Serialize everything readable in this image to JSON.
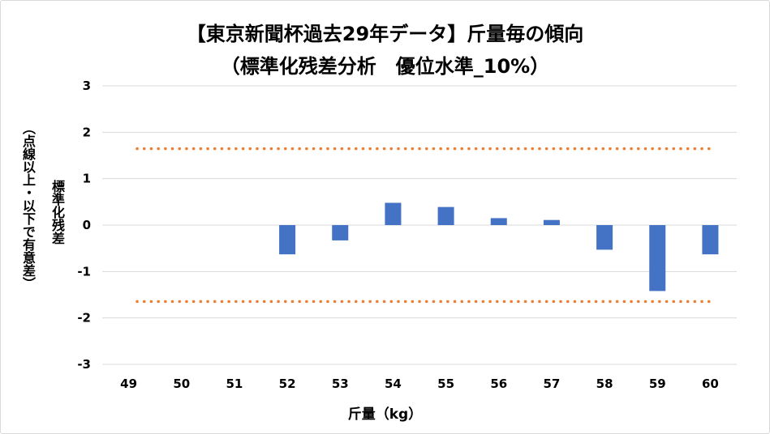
{
  "chart_data": {
    "type": "bar",
    "title": "【東京新聞杯過去29年データ】斤量毎の傾向",
    "subtitle": "（標準化残差分析　優位水準_10%）",
    "xlabel": "斤量（kg）",
    "ylabel": "標準化残差",
    "ylabel_note": "（点線以上・以下で有意差）",
    "categories": [
      "49",
      "50",
      "51",
      "52",
      "53",
      "54",
      "55",
      "56",
      "57",
      "58",
      "59",
      "60"
    ],
    "values": [
      0,
      0,
      0,
      -0.63,
      -0.33,
      0.48,
      0.39,
      0.15,
      0.11,
      -0.53,
      -1.42,
      -0.63
    ],
    "ylim": [
      -3,
      3
    ],
    "yticks": [
      3,
      2,
      1,
      0,
      -1,
      -2,
      -3
    ],
    "ytick_labels": [
      "3",
      "2",
      "1",
      "0",
      "-1",
      "-2",
      "-3"
    ],
    "thresholds": [
      1.645,
      -1.645
    ],
    "grid": true,
    "colors": {
      "bar": "#4472c4",
      "threshold": "#ed7d31",
      "grid": "#d9d9d9"
    }
  }
}
